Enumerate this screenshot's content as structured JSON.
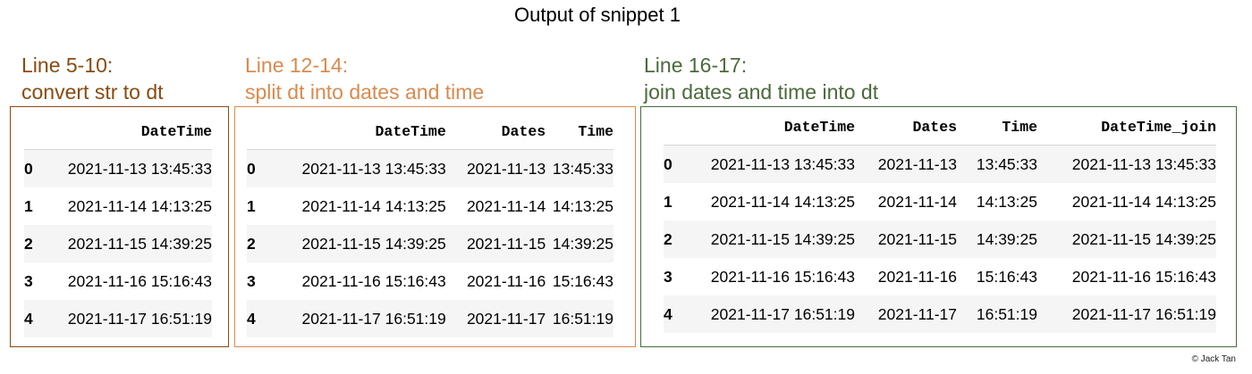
{
  "page_title": "Output of snippet 1",
  "copyright": "© Jack Tan",
  "colors": {
    "section1": "#8a4b10",
    "section2": "#d98a4e",
    "section3": "#4a6a3a"
  },
  "sections": [
    {
      "heading": "Line 5-10:",
      "subheading": "convert str to dt",
      "columns": [
        "DateTime"
      ],
      "rows": [
        {
          "index": "0",
          "cells": [
            "2021-11-13 13:45:33"
          ]
        },
        {
          "index": "1",
          "cells": [
            "2021-11-14 14:13:25"
          ]
        },
        {
          "index": "2",
          "cells": [
            "2021-11-15 14:39:25"
          ]
        },
        {
          "index": "3",
          "cells": [
            "2021-11-16 15:16:43"
          ]
        },
        {
          "index": "4",
          "cells": [
            "2021-11-17 16:51:19"
          ]
        }
      ]
    },
    {
      "heading": "Line 12-14:",
      "subheading": "split dt into dates and time",
      "columns": [
        "DateTime",
        "Dates",
        "Time"
      ],
      "rows": [
        {
          "index": "0",
          "cells": [
            "2021-11-13 13:45:33",
            "2021-11-13",
            "13:45:33"
          ]
        },
        {
          "index": "1",
          "cells": [
            "2021-11-14 14:13:25",
            "2021-11-14",
            "14:13:25"
          ]
        },
        {
          "index": "2",
          "cells": [
            "2021-11-15 14:39:25",
            "2021-11-15",
            "14:39:25"
          ]
        },
        {
          "index": "3",
          "cells": [
            "2021-11-16 15:16:43",
            "2021-11-16",
            "15:16:43"
          ]
        },
        {
          "index": "4",
          "cells": [
            "2021-11-17 16:51:19",
            "2021-11-17",
            "16:51:19"
          ]
        }
      ]
    },
    {
      "heading": "Line 16-17:",
      "subheading": "join dates and time into dt",
      "columns": [
        "DateTime",
        "Dates",
        "Time",
        "DateTime_join"
      ],
      "rows": [
        {
          "index": "0",
          "cells": [
            "2021-11-13 13:45:33",
            "2021-11-13",
            "13:45:33",
            "2021-11-13 13:45:33"
          ]
        },
        {
          "index": "1",
          "cells": [
            "2021-11-14 14:13:25",
            "2021-11-14",
            "14:13:25",
            "2021-11-14 14:13:25"
          ]
        },
        {
          "index": "2",
          "cells": [
            "2021-11-15 14:39:25",
            "2021-11-15",
            "14:39:25",
            "2021-11-15 14:39:25"
          ]
        },
        {
          "index": "3",
          "cells": [
            "2021-11-16 15:16:43",
            "2021-11-16",
            "15:16:43",
            "2021-11-16 15:16:43"
          ]
        },
        {
          "index": "4",
          "cells": [
            "2021-11-17 16:51:19",
            "2021-11-17",
            "16:51:19",
            "2021-11-17 16:51:19"
          ]
        }
      ]
    }
  ]
}
